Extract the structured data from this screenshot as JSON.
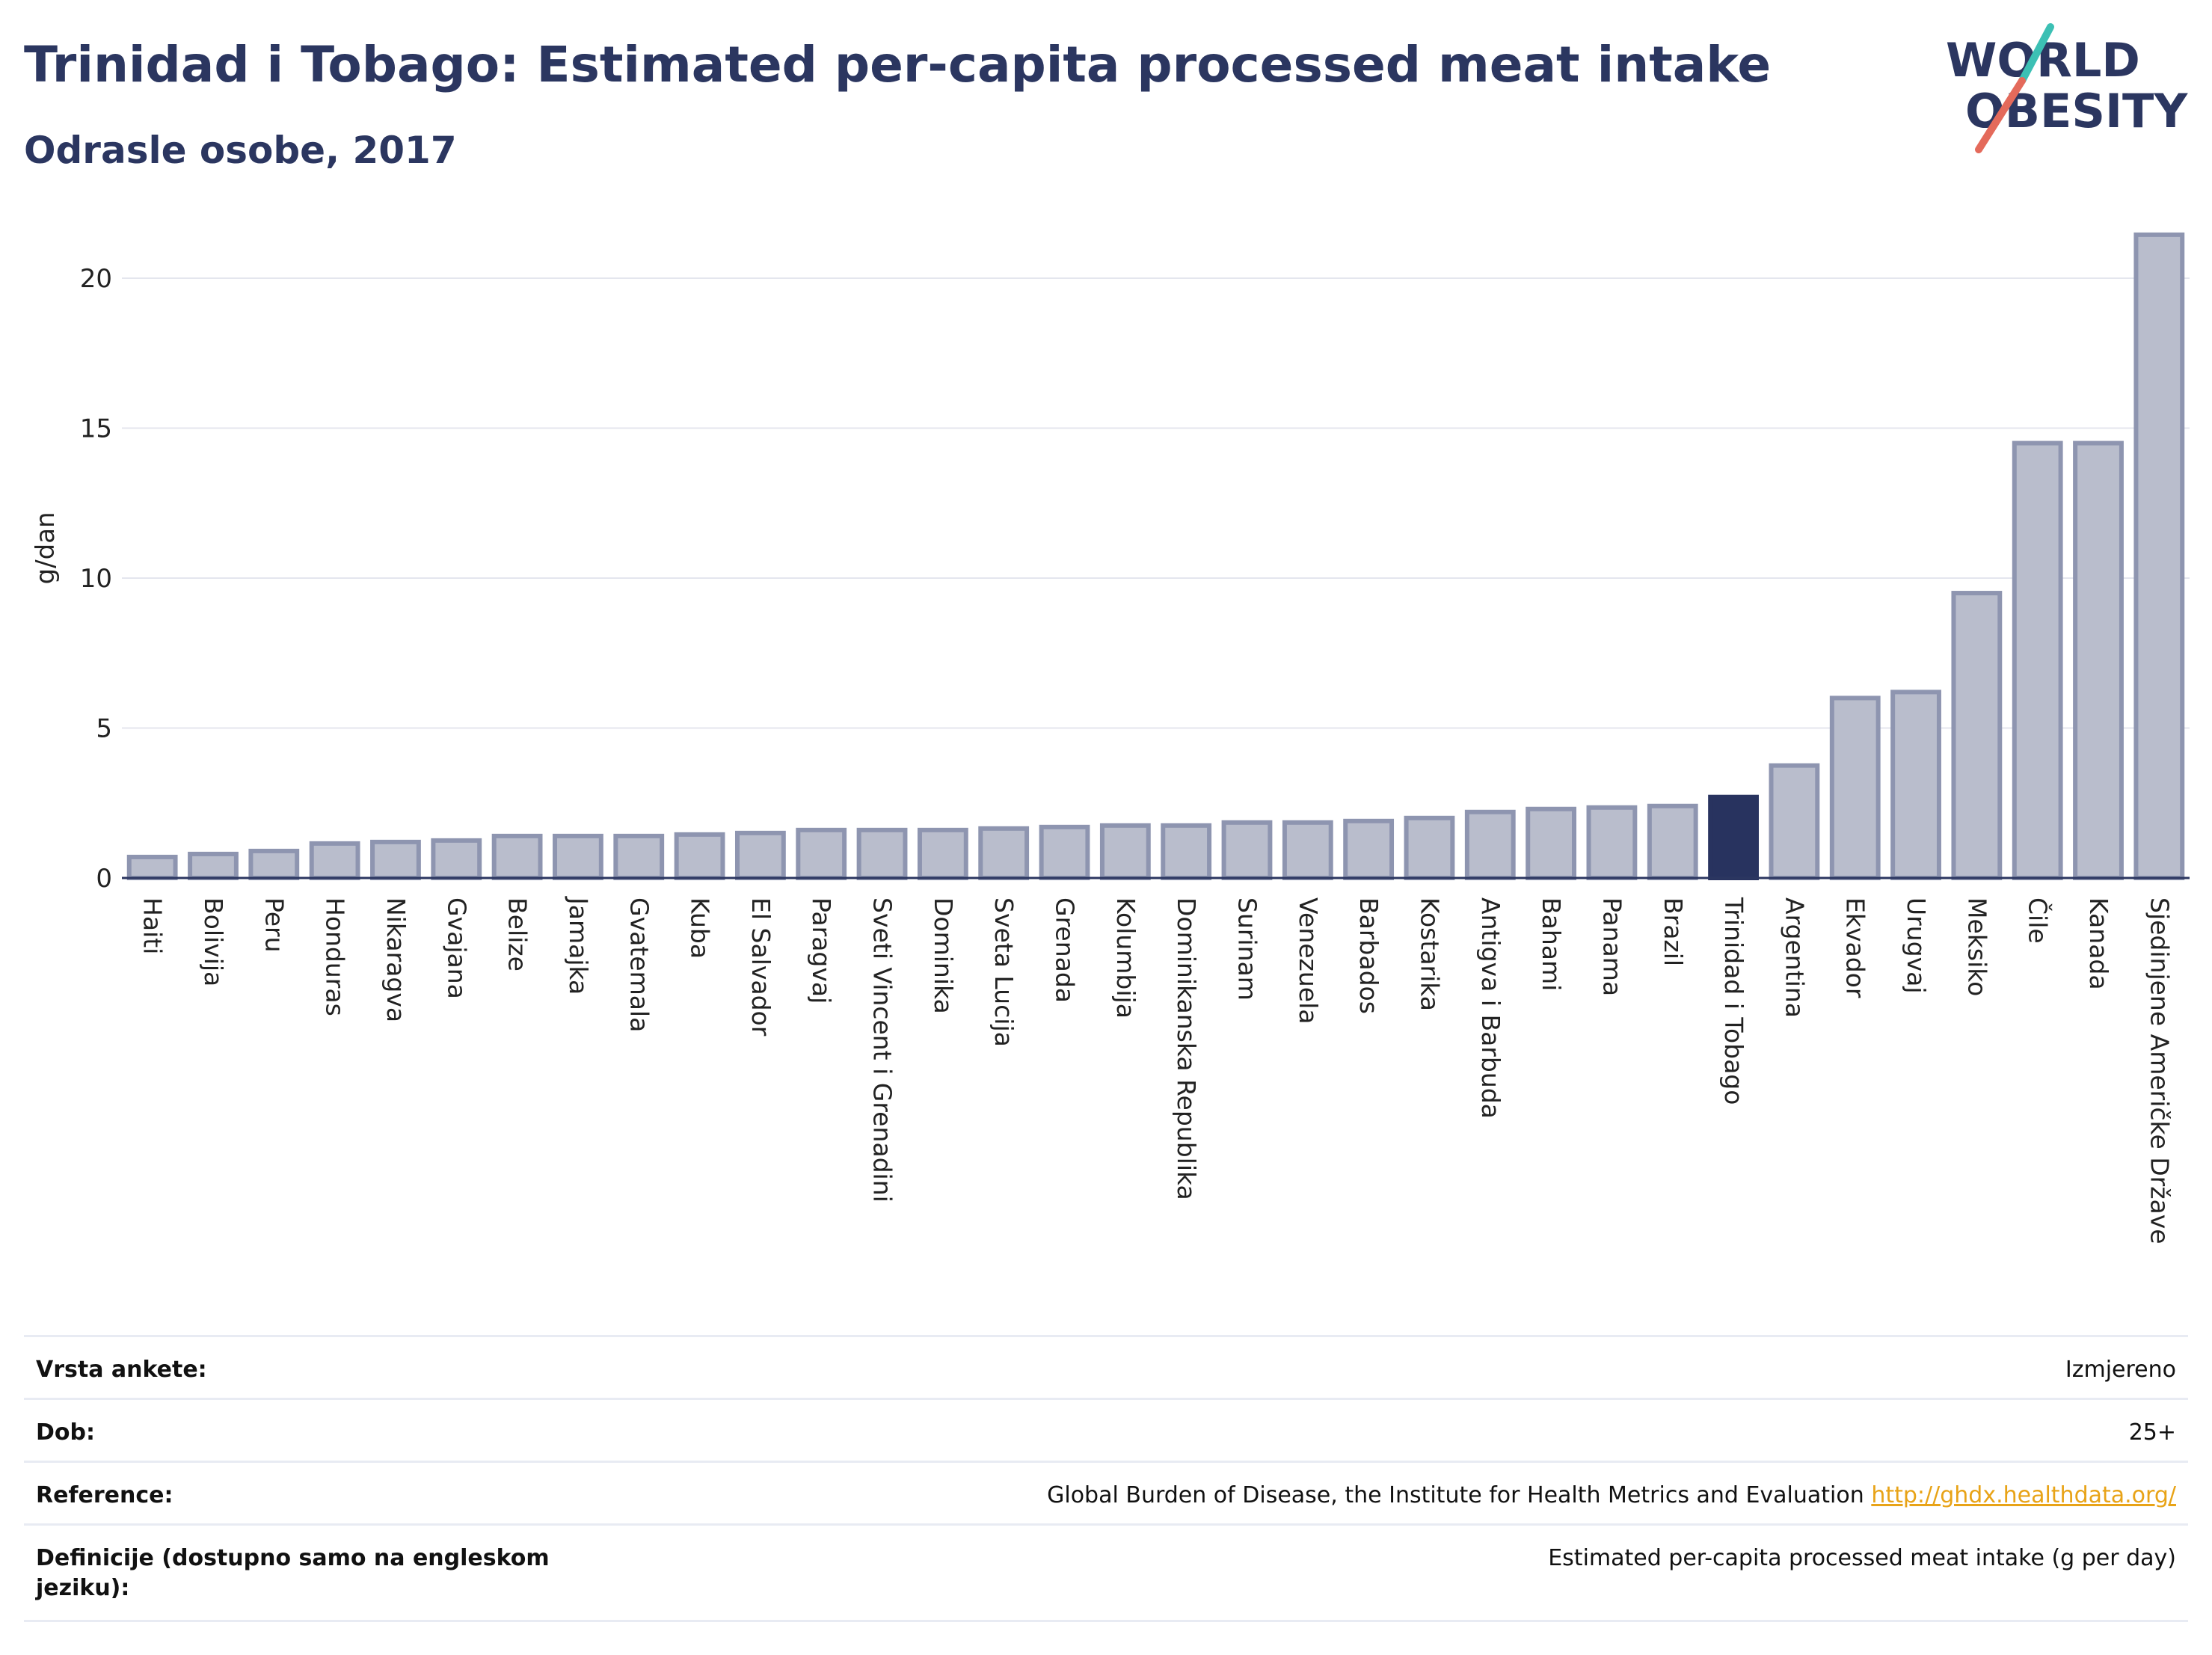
{
  "header": {
    "title": "Trinidad i Tobago: Estimated per-capita processed meat intake",
    "subtitle": "Odrasle osobe, 2017"
  },
  "logo": {
    "line1": "WORLD",
    "line2": "OBESITY",
    "icon": "world-obesity-logo-icon"
  },
  "colors": {
    "bar": "#b9bdcc",
    "bar_stroke": "#8e95b0",
    "highlight": "#28335f",
    "title": "#2b3660",
    "link": "#e8a317"
  },
  "chart_data": {
    "type": "bar",
    "ylabel": "g/dan",
    "ylim": [
      0,
      22
    ],
    "yticks": [
      0,
      5,
      10,
      15,
      20
    ],
    "grid": true,
    "highlight": "Trinidad i Tobago",
    "categories": [
      "Haiti",
      "Bolivija",
      "Peru",
      "Honduras",
      "Nikaragva",
      "Gvajana",
      "Belize",
      "Jamajka",
      "Gvatemala",
      "Kuba",
      "El Salvador",
      "Paragvaj",
      "Sveti Vincent i Grenadini",
      "Dominika",
      "Sveta Lucija",
      "Grenada",
      "Kolumbija",
      "Dominikanska Republika",
      "Surinam",
      "Venezuela",
      "Barbados",
      "Kostarika",
      "Antigva i Barbuda",
      "Bahami",
      "Panama",
      "Brazil",
      "Trinidad i Tobago",
      "Argentina",
      "Ekvador",
      "Urugvaj",
      "Meksiko",
      "Čile",
      "Kanada",
      "Sjedinjene Američke Države"
    ],
    "values": [
      0.7,
      0.8,
      0.9,
      1.15,
      1.2,
      1.25,
      1.4,
      1.4,
      1.4,
      1.45,
      1.5,
      1.6,
      1.6,
      1.6,
      1.65,
      1.7,
      1.75,
      1.75,
      1.85,
      1.85,
      1.9,
      2.0,
      2.2,
      2.3,
      2.35,
      2.4,
      2.7,
      3.75,
      6.0,
      6.2,
      9.5,
      14.5,
      14.5,
      21.45
    ]
  },
  "meta": {
    "rows": [
      {
        "label": "Vrsta ankete:",
        "value": "Izmjereno"
      },
      {
        "label": "Dob:",
        "value": "25+"
      },
      {
        "label": "Reference:",
        "value": "Global Burden of Disease, the Institute for Health Metrics and Evaluation",
        "link": "http://ghdx.healthdata.org/"
      },
      {
        "label": "Definicije (dostupno samo na engleskom jeziku):",
        "value": "Estimated per-capita processed meat intake (g per day)"
      }
    ]
  }
}
